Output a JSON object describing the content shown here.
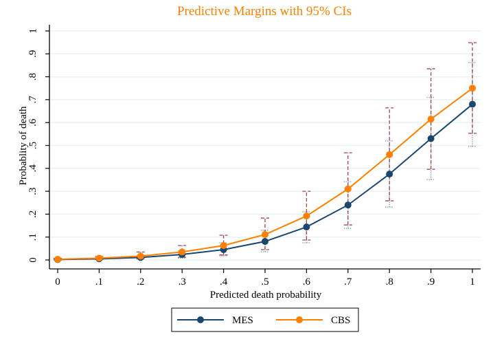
{
  "chart_data": {
    "type": "line",
    "title": "Predictive Margins with 95% CIs",
    "xlabel": "Predicted death probability",
    "ylabel": "Probablity of death",
    "xlim": [
      0,
      1
    ],
    "ylim": [
      0,
      1
    ],
    "grid": true,
    "legend_position": "bottom",
    "x": [
      0,
      0.1,
      0.2,
      0.3,
      0.4,
      0.5,
      0.6,
      0.7,
      0.8,
      0.9,
      1.0
    ],
    "x_tick_labels": [
      "0",
      ".1",
      ".2",
      ".3",
      ".4",
      ".5",
      ".6",
      ".7",
      ".8",
      ".9",
      "1"
    ],
    "y_ticks": [
      0,
      0.1,
      0.2,
      0.3,
      0.4,
      0.5,
      0.6,
      0.7,
      0.8,
      0.9,
      1.0
    ],
    "y_tick_labels": [
      "0",
      ".1",
      ".2",
      ".3",
      ".4",
      ".5",
      ".6",
      ".7",
      ".8",
      ".9",
      "1"
    ],
    "series": [
      {
        "name": "MES",
        "color": "#1a476f",
        "ci_color": "#7d9bb5",
        "ci_style": "dotted",
        "values": [
          0.002,
          0.005,
          0.011,
          0.024,
          0.045,
          0.081,
          0.144,
          0.24,
          0.375,
          0.53,
          0.68
        ],
        "ci_lower": [
          0.0,
          0.002,
          0.004,
          0.008,
          0.018,
          0.036,
          0.075,
          0.138,
          0.231,
          0.351,
          0.496
        ],
        "ci_upper": [
          0.004,
          0.009,
          0.018,
          0.04,
          0.075,
          0.13,
          0.21,
          0.342,
          0.52,
          0.71,
          0.862
        ]
      },
      {
        "name": "CBS",
        "color": "#ff8000",
        "ci_color": "#a0404a",
        "ci_style": "dashed",
        "values": [
          0.003,
          0.008,
          0.017,
          0.035,
          0.063,
          0.111,
          0.192,
          0.31,
          0.46,
          0.615,
          0.75
        ],
        "ci_lower": [
          0.0,
          0.003,
          0.006,
          0.012,
          0.022,
          0.045,
          0.087,
          0.153,
          0.258,
          0.396,
          0.553
        ],
        "ci_upper": [
          0.007,
          0.015,
          0.035,
          0.063,
          0.108,
          0.183,
          0.3,
          0.468,
          0.664,
          0.835,
          0.949
        ]
      }
    ]
  },
  "colors": {
    "title": "#ff8000",
    "grid": "#eaf2f3",
    "axis": "#000000"
  }
}
